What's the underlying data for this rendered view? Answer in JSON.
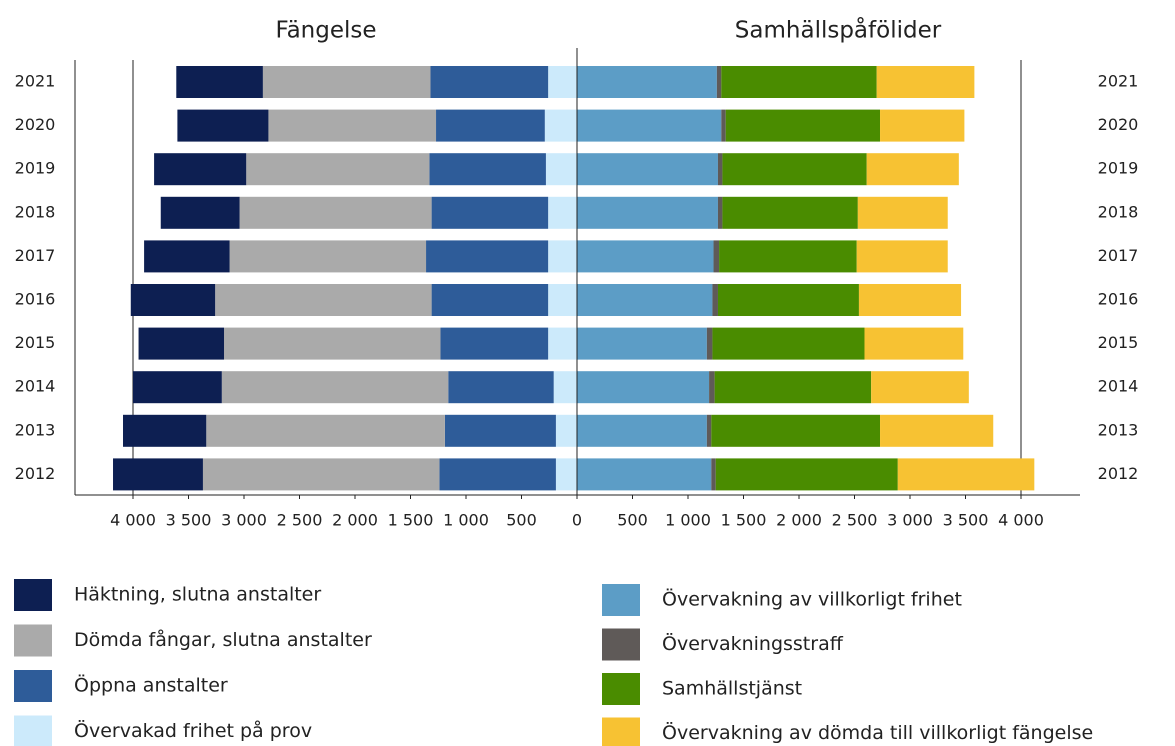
{
  "chart_data": [
    {
      "type": "bar",
      "orientation": "horizontal",
      "stacked": true,
      "x_reversed": true,
      "title": "Fängelse",
      "categories": [
        "2021",
        "2020",
        "2019",
        "2018",
        "2017",
        "2016",
        "2015",
        "2014",
        "2013",
        "2012"
      ],
      "series": [
        {
          "name": "Häktning, slutna anstalter",
          "color": "#0d1f52",
          "values": [
            780,
            820,
            830,
            710,
            770,
            760,
            770,
            800,
            750,
            810
          ]
        },
        {
          "name": "Dömda fångar, slutna anstalter",
          "color": "#aaaaaa",
          "values": [
            1510,
            1510,
            1650,
            1730,
            1770,
            1950,
            1950,
            2040,
            2150,
            2130
          ]
        },
        {
          "name": "Öppna anstalter",
          "color": "#2e5c99",
          "values": [
            1060,
            980,
            1050,
            1050,
            1100,
            1050,
            970,
            950,
            1000,
            1050
          ]
        },
        {
          "name": "Övervakad frihet på prov",
          "color": "#cceafb",
          "values": [
            260,
            290,
            280,
            260,
            260,
            260,
            260,
            210,
            190,
            190
          ]
        }
      ],
      "xlim": [
        0,
        4000
      ],
      "xticks": [
        {
          "value": 4000,
          "label": "4 000"
        },
        {
          "value": 3500,
          "label": "3 500"
        },
        {
          "value": 3000,
          "label": "3 000"
        },
        {
          "value": 2500,
          "label": "2 500"
        },
        {
          "value": 2000,
          "label": "2 000"
        },
        {
          "value": 1500,
          "label": "1 500"
        },
        {
          "value": 1000,
          "label": "1 000"
        },
        500
      ]
    },
    {
      "type": "bar",
      "orientation": "horizontal",
      "stacked": true,
      "x_reversed": false,
      "title": "Samhällspåfölider",
      "categories": [
        "2021",
        "2020",
        "2019",
        "2018",
        "2017",
        "2016",
        "2015",
        "2014",
        "2013",
        "2012"
      ],
      "series": [
        {
          "name": "Övervakning av villkorligt frihet",
          "color": "#5c9dc6",
          "values": [
            1260,
            1300,
            1270,
            1270,
            1230,
            1220,
            1170,
            1190,
            1170,
            1210
          ]
        },
        {
          "name": "Övervakningsstraff",
          "color": "#5f5a58",
          "values": [
            40,
            40,
            40,
            40,
            50,
            50,
            50,
            50,
            40,
            40
          ]
        },
        {
          "name": "Samhällstjänst",
          "color": "#4a8c00",
          "values": [
            1400,
            1390,
            1300,
            1220,
            1240,
            1270,
            1370,
            1410,
            1520,
            1640
          ]
        },
        {
          "name": "Övervakning av dömda till villkorligt fängelse",
          "color": "#f7c233",
          "values": [
            880,
            760,
            830,
            810,
            820,
            920,
            890,
            880,
            1020,
            1230
          ]
        }
      ],
      "xlim": [
        0,
        4000
      ],
      "xticks": [
        0,
        500,
        {
          "value": 1000,
          "label": "1 000"
        },
        {
          "value": 1500,
          "label": "1 500"
        },
        {
          "value": 2000,
          "label": "2 000"
        },
        {
          "value": 2500,
          "label": "2 500"
        },
        {
          "value": 3000,
          "label": "3 000"
        },
        {
          "value": 3500,
          "label": "3 500"
        },
        {
          "value": 4000,
          "label": "4 000"
        }
      ]
    }
  ]
}
